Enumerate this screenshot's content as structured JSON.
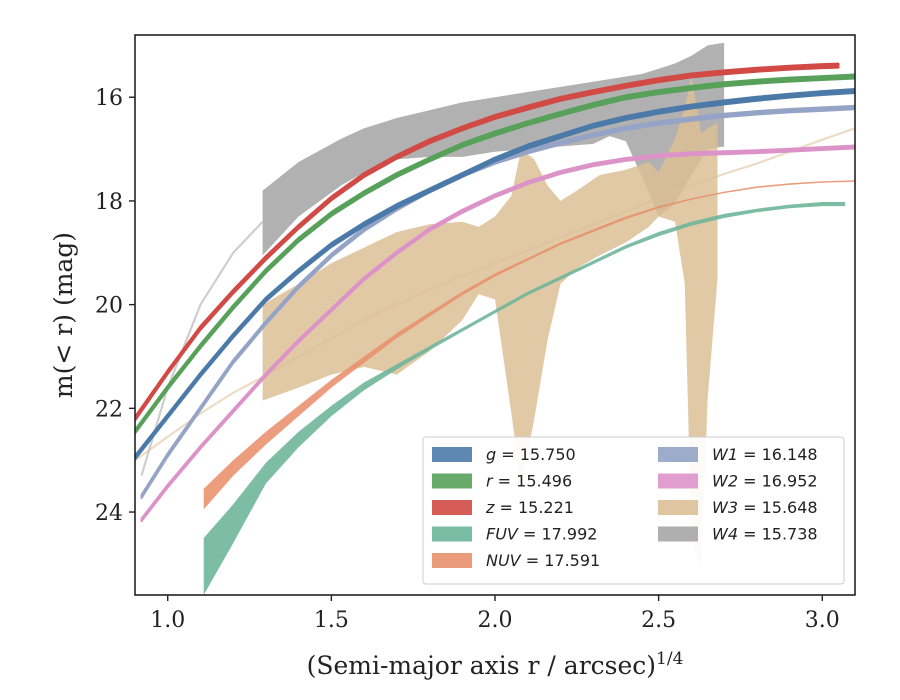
{
  "chart_data": {
    "type": "line",
    "xlabel": "(Semi-major axis r / arcsec)",
    "xlabel_sup": "1/4",
    "ylabel": "m(< r) (mag)",
    "xlim": [
      0.9,
      3.1
    ],
    "ylim": [
      25.6,
      14.8
    ],
    "y_inverted": true,
    "xticks": [
      1.0,
      1.5,
      2.0,
      2.5,
      3.0
    ],
    "xtick_labels": [
      "1.0",
      "1.5",
      "2.0",
      "2.5",
      "3.0"
    ],
    "yticks": [
      16,
      18,
      20,
      22,
      24
    ],
    "ytick_labels": [
      "16",
      "18",
      "20",
      "22",
      "24"
    ],
    "legend_placement": "lower right",
    "series": [
      {
        "name": "g",
        "value": "15.750",
        "color": "#4c7aa8",
        "band_x": [
          0.9,
          1.0,
          1.1,
          1.2,
          1.3,
          1.4,
          1.5,
          1.6,
          1.7,
          1.8,
          1.9,
          2.0,
          2.1,
          2.2,
          2.3,
          2.4,
          2.5,
          2.6,
          2.7,
          2.8,
          2.9,
          3.0,
          3.1
        ],
        "band_y": [
          22.95,
          22.15,
          21.35,
          20.6,
          19.9,
          19.35,
          18.85,
          18.45,
          18.1,
          17.8,
          17.5,
          17.2,
          16.95,
          16.75,
          16.55,
          16.4,
          16.28,
          16.18,
          16.1,
          16.03,
          15.97,
          15.92,
          15.88
        ],
        "width": 0.08
      },
      {
        "name": "r",
        "value": "15.496",
        "color": "#58a15a",
        "band_x": [
          0.9,
          1.0,
          1.1,
          1.2,
          1.3,
          1.4,
          1.5,
          1.6,
          1.7,
          1.8,
          1.9,
          2.0,
          2.1,
          2.2,
          2.3,
          2.4,
          2.5,
          2.6,
          2.7,
          2.8,
          2.9,
          3.0,
          3.1
        ],
        "band_y": [
          22.45,
          21.6,
          20.8,
          20.05,
          19.35,
          18.75,
          18.25,
          17.85,
          17.5,
          17.2,
          16.92,
          16.7,
          16.5,
          16.32,
          16.15,
          16.0,
          15.9,
          15.82,
          15.75,
          15.7,
          15.66,
          15.63,
          15.6
        ],
        "width": 0.08
      },
      {
        "name": "z",
        "value": "15.221",
        "color": "#d14a45",
        "band_x": [
          0.9,
          1.0,
          1.1,
          1.2,
          1.3,
          1.4,
          1.5,
          1.6,
          1.7,
          1.8,
          1.9,
          2.0,
          2.1,
          2.2,
          2.3,
          2.4,
          2.5,
          2.6,
          2.7,
          2.8,
          2.9,
          3.0,
          3.05
        ],
        "band_y": [
          22.2,
          21.3,
          20.45,
          19.75,
          19.1,
          18.5,
          17.95,
          17.5,
          17.15,
          16.85,
          16.6,
          16.38,
          16.2,
          16.03,
          15.9,
          15.78,
          15.67,
          15.58,
          15.52,
          15.47,
          15.43,
          15.4,
          15.39
        ],
        "width": 0.08
      },
      {
        "name": "FUV",
        "value": "17.992",
        "color": "#6bb49a",
        "band_x": [
          1.11,
          1.2,
          1.3,
          1.4,
          1.5,
          1.6,
          1.7,
          1.8,
          1.9,
          2.0,
          2.1,
          2.2,
          2.3,
          2.4,
          2.5,
          2.6,
          2.7,
          2.8,
          2.9,
          3.0,
          3.07
        ],
        "band_upper": [
          24.5,
          23.85,
          23.05,
          22.45,
          21.95,
          21.5,
          21.15,
          20.8,
          20.45,
          20.1,
          19.75,
          19.45,
          19.15,
          18.85,
          18.6,
          18.4,
          18.25,
          18.15,
          18.07,
          18.02,
          18.02
        ],
        "band_lower": [
          25.6,
          24.6,
          23.45,
          22.75,
          22.15,
          21.65,
          21.25,
          20.88,
          20.52,
          20.17,
          19.82,
          19.52,
          19.22,
          18.92,
          18.68,
          18.48,
          18.33,
          18.22,
          18.14,
          18.1,
          18.1
        ]
      },
      {
        "name": "NUV",
        "value": "17.591",
        "color": "#e8906c",
        "band_x": [
          1.11,
          1.2,
          1.3,
          1.4,
          1.5,
          1.6,
          1.7,
          1.8,
          1.9,
          2.0,
          2.1,
          2.2,
          2.3,
          2.4,
          2.5,
          2.6,
          2.7,
          2.8,
          2.9,
          3.0,
          3.1
        ],
        "band_upper": [
          23.55,
          23.0,
          22.45,
          21.95,
          21.45,
          21.0,
          20.55,
          20.15,
          19.75,
          19.4,
          19.1,
          18.8,
          18.55,
          18.3,
          18.1,
          17.95,
          17.82,
          17.72,
          17.66,
          17.62,
          17.6
        ],
        "band_lower": [
          23.95,
          23.3,
          22.7,
          22.15,
          21.6,
          21.12,
          20.65,
          20.23,
          19.82,
          19.46,
          19.15,
          18.85,
          18.6,
          18.35,
          18.14,
          17.98,
          17.85,
          17.75,
          17.69,
          17.65,
          17.63
        ]
      },
      {
        "name": "W1",
        "value": "16.148",
        "color": "#94a3c6",
        "band_x": [
          0.92,
          1.0,
          1.1,
          1.2,
          1.3,
          1.4,
          1.5,
          1.6,
          1.7,
          1.8,
          1.9,
          2.0,
          2.1,
          2.2,
          2.3,
          2.4,
          2.5,
          2.6,
          2.7,
          2.8,
          2.9,
          3.0,
          3.1
        ],
        "band_y": [
          23.7,
          22.9,
          22.0,
          21.1,
          20.35,
          19.65,
          19.05,
          18.55,
          18.15,
          17.8,
          17.5,
          17.25,
          17.05,
          16.88,
          16.73,
          16.6,
          16.5,
          16.42,
          16.35,
          16.3,
          16.26,
          16.23,
          16.2
        ],
        "width": 0.07
      },
      {
        "name": "W2",
        "value": "16.952",
        "color": "#dc93c8",
        "band_x": [
          0.92,
          1.0,
          1.1,
          1.2,
          1.3,
          1.4,
          1.5,
          1.6,
          1.7,
          1.8,
          1.9,
          2.0,
          2.1,
          2.2,
          2.3,
          2.4,
          2.5,
          2.6,
          2.7,
          2.75,
          2.8,
          2.9,
          3.0,
          3.1
        ],
        "band_y": [
          24.15,
          23.5,
          22.75,
          22.05,
          21.35,
          20.7,
          20.1,
          19.5,
          19.0,
          18.55,
          18.2,
          17.9,
          17.65,
          17.45,
          17.3,
          17.2,
          17.13,
          17.09,
          17.07,
          17.06,
          17.05,
          17.02,
          16.99,
          16.96
        ],
        "width": 0.06
      },
      {
        "name": "W3",
        "value": "15.648",
        "color": "#dcbf96",
        "band_x": [
          1.29,
          1.4,
          1.5,
          1.6,
          1.7,
          1.8,
          1.9,
          1.95,
          2.0,
          2.05,
          2.08,
          2.12,
          2.16,
          2.2,
          2.25,
          2.32,
          2.4,
          2.47,
          2.5,
          2.55,
          2.58,
          2.6,
          2.63,
          2.65,
          2.68
        ],
        "band_upper": [
          20.0,
          19.6,
          19.2,
          18.9,
          18.6,
          18.45,
          18.4,
          18.5,
          18.3,
          17.9,
          17.0,
          17.2,
          17.7,
          18.0,
          17.8,
          17.5,
          17.4,
          17.25,
          17.45,
          16.8,
          16.2,
          15.6,
          16.7,
          16.6,
          16.5
        ],
        "band_lower": [
          21.85,
          21.6,
          21.35,
          21.2,
          21.35,
          20.9,
          20.3,
          19.8,
          19.9,
          22.1,
          23.5,
          22.2,
          20.7,
          19.6,
          19.3,
          19.05,
          18.8,
          18.5,
          18.3,
          18.4,
          19.6,
          24.5,
          25.1,
          21.8,
          19.5
        ],
        "ext_x": [
          0.9,
          1.0,
          1.1,
          1.2,
          1.29,
          1.4,
          1.5,
          1.6,
          1.7,
          1.8,
          1.9,
          2.0,
          2.1,
          2.2,
          2.3,
          2.4,
          2.5,
          2.6,
          2.7,
          2.8,
          2.9,
          3.0,
          3.1
        ],
        "ext_y": [
          23.0,
          22.55,
          22.1,
          21.7,
          21.4,
          21.0,
          20.65,
          20.3,
          20.0,
          19.7,
          19.45,
          19.2,
          18.95,
          18.7,
          18.45,
          18.2,
          17.95,
          17.7,
          17.48,
          17.28,
          17.05,
          16.82,
          16.6
        ]
      },
      {
        "name": "W4",
        "value": "15.738",
        "color": "#a6a6a6",
        "band_x": [
          1.29,
          1.4,
          1.53,
          1.6,
          1.7,
          1.8,
          1.9,
          2.0,
          2.1,
          2.2,
          2.3,
          2.35,
          2.4,
          2.45,
          2.5,
          2.55,
          2.6,
          2.65,
          2.7
        ],
        "band_upper": [
          17.8,
          17.25,
          16.8,
          16.6,
          16.4,
          16.25,
          16.1,
          16.0,
          15.9,
          15.8,
          15.7,
          15.65,
          15.6,
          15.55,
          15.45,
          15.35,
          15.2,
          15.0,
          14.95
        ],
        "band_lower": [
          19.05,
          18.3,
          17.7,
          17.45,
          17.2,
          17.15,
          17.15,
          17.05,
          17.0,
          16.95,
          16.9,
          16.75,
          16.85,
          17.55,
          18.3,
          18.05,
          17.5,
          17.0,
          16.95
        ],
        "ext_x": [
          0.92,
          1.0,
          1.1,
          1.2,
          1.29
        ],
        "ext_y": [
          23.3,
          21.6,
          20.0,
          19.0,
          18.4
        ]
      }
    ]
  }
}
